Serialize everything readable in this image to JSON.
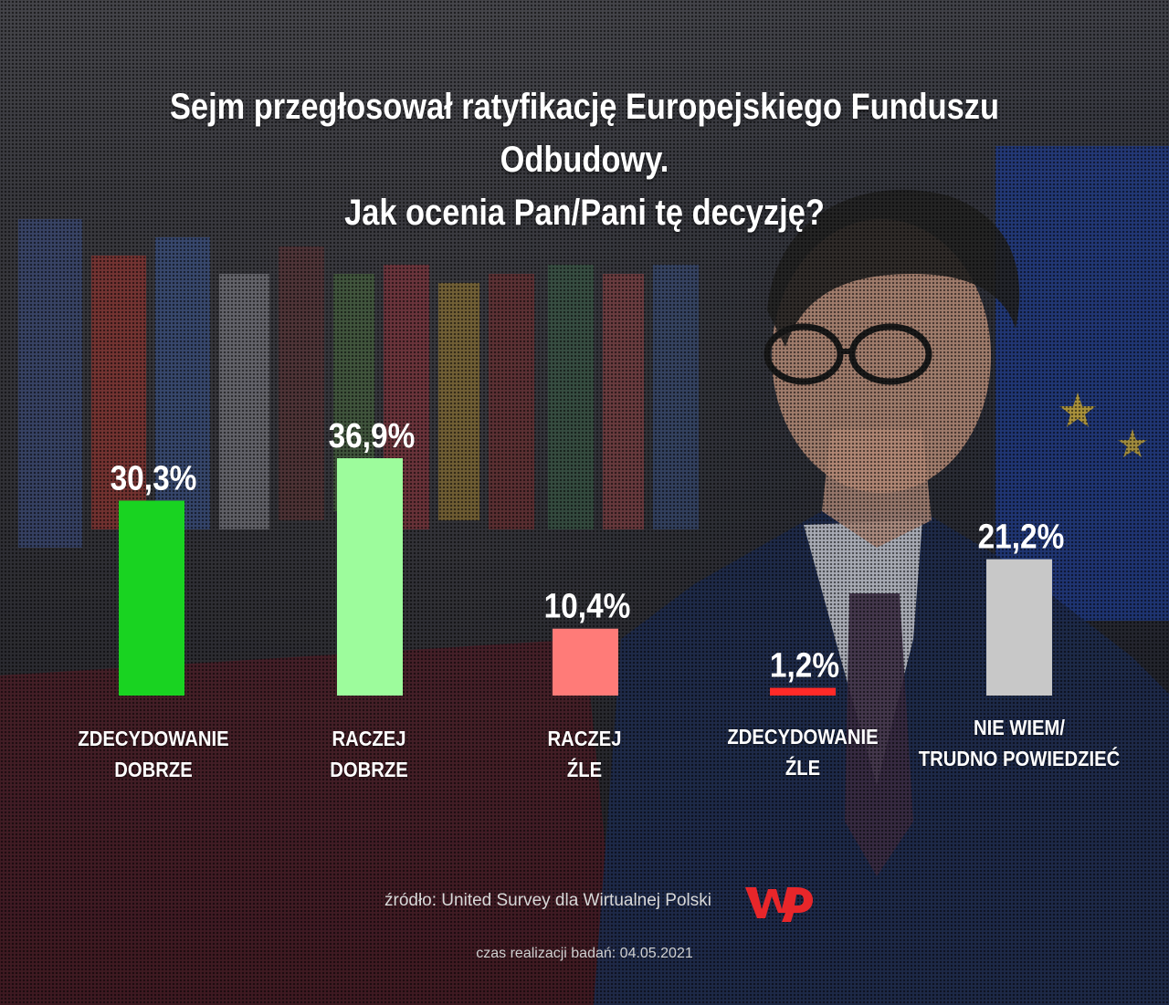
{
  "title_lines": [
    "Sejm przegłosował ratyfikację Europejskiego Funduszu",
    "Odbudowy.",
    "Jak ocenia Pan/Pani tę decyzję?"
  ],
  "chart_data": {
    "type": "bar",
    "categories": [
      [
        "ZDECYDOWANIE",
        "DOBRZE"
      ],
      [
        "RACZEJ",
        "DOBRZE"
      ],
      [
        "RACZEJ",
        "ŹLE"
      ],
      [
        "ZDECYDOWANIE",
        "ŹLE"
      ],
      [
        "NIE WIEM/",
        "TRUDNO POWIEDZIEĆ"
      ]
    ],
    "values": [
      30.3,
      36.9,
      10.4,
      1.2,
      21.2
    ],
    "value_labels": [
      "30,3%",
      "36,9%",
      "10,4%",
      "1,2%",
      "21,2%"
    ],
    "colors": [
      "#19d321",
      "#9dfc9c",
      "#ff7b78",
      "#ff2a28",
      "#c8c8c8"
    ],
    "ylim": [
      0,
      36.9
    ],
    "grid": false,
    "legend": "none"
  },
  "footer": {
    "source": "źródło: United Survey dla Wirtualnej Polski",
    "date": "czas realizacji badań: 04.05.2021"
  },
  "brand": {
    "logo_text": "WP",
    "logo_color": "#e8262a"
  }
}
